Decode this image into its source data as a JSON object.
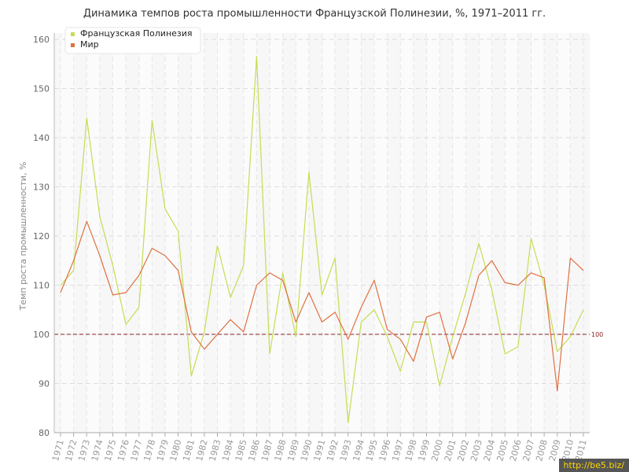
{
  "chart_data": {
    "type": "line",
    "title": "Динамика темпов роста промышленности Французской Полинезии, %, 1971–2011 гг.",
    "ylabel": "Темп роста промышленности, %",
    "xlabel": "",
    "ylim": [
      80,
      160
    ],
    "yticks": [
      80,
      90,
      100,
      110,
      120,
      130,
      140,
      150,
      160
    ],
    "grid": true,
    "legend_position": "top-left",
    "reference_line": {
      "value": 100,
      "label": "100",
      "color": "#8B2020"
    },
    "x": [
      "1971",
      "1972",
      "1973",
      "1974",
      "1975",
      "1976",
      "1977",
      "1978",
      "1979",
      "1980",
      "1981",
      "1982",
      "1983",
      "1984",
      "1985",
      "1986",
      "1987",
      "1988",
      "1989",
      "1990",
      "1991",
      "1992",
      "1993",
      "1994",
      "1995",
      "1996",
      "1997",
      "1998",
      "1999",
      "2000",
      "2001",
      "2002",
      "2003",
      "2004",
      "2005",
      "2006",
      "2007",
      "2008",
      "2009",
      "2010",
      "2011"
    ],
    "series": [
      {
        "name": "Французская Полинезия",
        "color": "#c5dd52",
        "values": [
          110,
          113,
          144,
          124,
          114,
          102,
          105.5,
          143.5,
          125.5,
          121,
          91.5,
          100.5,
          118,
          107.5,
          114,
          156.5,
          96,
          112.5,
          99.5,
          133,
          108,
          115.5,
          82,
          102.5,
          105,
          99.5,
          92.5,
          102.5,
          102.5,
          89.5,
          99.5,
          108.5,
          118.5,
          109,
          96,
          97.5,
          119.5,
          110,
          96.5,
          99.5,
          105
        ]
      },
      {
        "name": "Мир",
        "color": "#e07040",
        "values": [
          108.5,
          115,
          123,
          116,
          108,
          108.5,
          112,
          117.5,
          116,
          113,
          100.5,
          97,
          100,
          103,
          100.5,
          110,
          112.5,
          111,
          102.5,
          108.5,
          102.5,
          104.5,
          99,
          105.5,
          111,
          101,
          99,
          94.5,
          103.5,
          104.5,
          95,
          102.5,
          112,
          115,
          110.5,
          110,
          112.5,
          111.5,
          88.5,
          115.5,
          113
        ]
      }
    ]
  },
  "watermark": "http://be5.biz/"
}
